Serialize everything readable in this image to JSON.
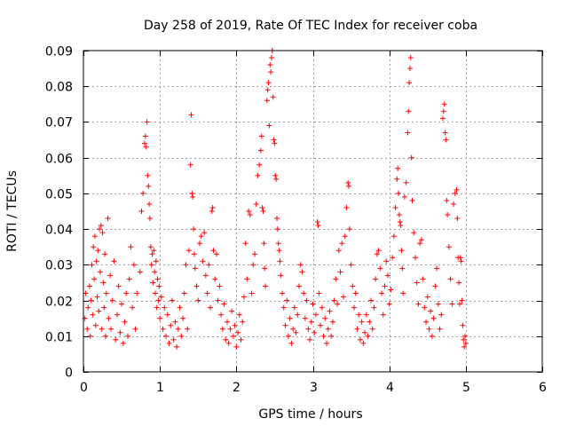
{
  "chart_data": {
    "type": "scatter",
    "title": "Day 258 of 2019, Rate Of TEC Index for receiver coba",
    "xlabel": "GPS time / hours",
    "ylabel": "ROTI / TECUs",
    "xlim": [
      0,
      6
    ],
    "ylim": [
      0,
      0.09
    ],
    "xticks": [
      0,
      1,
      2,
      3,
      4,
      5,
      6
    ],
    "xtick_labels": [
      "0",
      "1",
      "2",
      "3",
      "4",
      "5",
      "6"
    ],
    "yticks": [
      0,
      0.01,
      0.02,
      0.03,
      0.04,
      0.05,
      0.06,
      0.07,
      0.08,
      0.09
    ],
    "ytick_labels": [
      "0",
      "0.01",
      "0.02",
      "0.03",
      "0.04",
      "0.05",
      "0.06",
      "0.07",
      "0.08",
      "0.09"
    ],
    "grid": true,
    "marker": "+",
    "color": "#ff0000",
    "series": [
      {
        "name": "ROTI",
        "points": [
          [
            0.02,
            0.015
          ],
          [
            0.03,
            0.022
          ],
          [
            0.05,
            0.012
          ],
          [
            0.06,
            0.018
          ],
          [
            0.08,
            0.024
          ],
          [
            0.09,
            0.01
          ],
          [
            0.1,
            0.02
          ],
          [
            0.11,
            0.03
          ],
          [
            0.12,
            0.016
          ],
          [
            0.13,
            0.035
          ],
          [
            0.14,
            0.026
          ],
          [
            0.15,
            0.038
          ],
          [
            0.16,
            0.013
          ],
          [
            0.17,
            0.031
          ],
          [
            0.18,
            0.021
          ],
          [
            0.19,
            0.034
          ],
          [
            0.2,
            0.017
          ],
          [
            0.21,
            0.04
          ],
          [
            0.22,
            0.028
          ],
          [
            0.23,
            0.041
          ],
          [
            0.24,
            0.012
          ],
          [
            0.25,
            0.039
          ],
          [
            0.26,
            0.025
          ],
          [
            0.27,
            0.018
          ],
          [
            0.28,
            0.033
          ],
          [
            0.29,
            0.01
          ],
          [
            0.3,
            0.022
          ],
          [
            0.32,
            0.043
          ],
          [
            0.33,
            0.015
          ],
          [
            0.35,
            0.027
          ],
          [
            0.36,
            0.012
          ],
          [
            0.38,
            0.02
          ],
          [
            0.4,
            0.031
          ],
          [
            0.42,
            0.009
          ],
          [
            0.44,
            0.016
          ],
          [
            0.46,
            0.024
          ],
          [
            0.48,
            0.011
          ],
          [
            0.5,
            0.019
          ],
          [
            0.52,
            0.008
          ],
          [
            0.54,
            0.014
          ],
          [
            0.56,
            0.022
          ],
          [
            0.58,
            0.01
          ],
          [
            0.6,
            0.026
          ],
          [
            0.62,
            0.035
          ],
          [
            0.64,
            0.018
          ],
          [
            0.66,
            0.03
          ],
          [
            0.68,
            0.012
          ],
          [
            0.7,
            0.022
          ],
          [
            0.74,
            0.028
          ],
          [
            0.76,
            0.045
          ],
          [
            0.78,
            0.05
          ],
          [
            0.8,
            0.064
          ],
          [
            0.81,
            0.066
          ],
          [
            0.82,
            0.063
          ],
          [
            0.83,
            0.07
          ],
          [
            0.84,
            0.055
          ],
          [
            0.85,
            0.052
          ],
          [
            0.86,
            0.047
          ],
          [
            0.87,
            0.043
          ],
          [
            0.88,
            0.035
          ],
          [
            0.89,
            0.03
          ],
          [
            0.9,
            0.033
          ],
          [
            0.91,
            0.025
          ],
          [
            0.92,
            0.034
          ],
          [
            0.93,
            0.028
          ],
          [
            0.94,
            0.022
          ],
          [
            0.95,
            0.031
          ],
          [
            0.96,
            0.018
          ],
          [
            0.97,
            0.026
          ],
          [
            0.98,
            0.02
          ],
          [
            0.99,
            0.024
          ],
          [
            1.0,
            0.015
          ],
          [
            1.02,
            0.021
          ],
          [
            1.04,
            0.012
          ],
          [
            1.06,
            0.018
          ],
          [
            1.08,
            0.01
          ],
          [
            1.1,
            0.016
          ],
          [
            1.12,
            0.008
          ],
          [
            1.14,
            0.013
          ],
          [
            1.16,
            0.02
          ],
          [
            1.18,
            0.009
          ],
          [
            1.2,
            0.014
          ],
          [
            1.22,
            0.007
          ],
          [
            1.24,
            0.012
          ],
          [
            1.26,
            0.018
          ],
          [
            1.28,
            0.01
          ],
          [
            1.3,
            0.015
          ],
          [
            1.32,
            0.022
          ],
          [
            1.34,
            0.03
          ],
          [
            1.36,
            0.012
          ],
          [
            1.38,
            0.034
          ],
          [
            1.4,
            0.058
          ],
          [
            1.41,
            0.072
          ],
          [
            1.42,
            0.05
          ],
          [
            1.43,
            0.049
          ],
          [
            1.44,
            0.04
          ],
          [
            1.45,
            0.033
          ],
          [
            1.46,
            0.029
          ],
          [
            1.48,
            0.024
          ],
          [
            1.5,
            0.02
          ],
          [
            1.52,
            0.036
          ],
          [
            1.54,
            0.038
          ],
          [
            1.56,
            0.031
          ],
          [
            1.58,
            0.039
          ],
          [
            1.6,
            0.027
          ],
          [
            1.62,
            0.022
          ],
          [
            1.64,
            0.03
          ],
          [
            1.66,
            0.018
          ],
          [
            1.68,
            0.045
          ],
          [
            1.69,
            0.046
          ],
          [
            1.7,
            0.034
          ],
          [
            1.72,
            0.026
          ],
          [
            1.74,
            0.033
          ],
          [
            1.76,
            0.02
          ],
          [
            1.78,
            0.024
          ],
          [
            1.8,
            0.016
          ],
          [
            1.82,
            0.012
          ],
          [
            1.84,
            0.019
          ],
          [
            1.86,
            0.009
          ],
          [
            1.88,
            0.014
          ],
          [
            1.9,
            0.008
          ],
          [
            1.92,
            0.012
          ],
          [
            1.94,
            0.017
          ],
          [
            1.96,
            0.01
          ],
          [
            1.98,
            0.013
          ],
          [
            2.0,
            0.007
          ],
          [
            2.02,
            0.011
          ],
          [
            2.04,
            0.016
          ],
          [
            2.06,
            0.009
          ],
          [
            2.08,
            0.014
          ],
          [
            2.1,
            0.021
          ],
          [
            2.12,
            0.036
          ],
          [
            2.14,
            0.026
          ],
          [
            2.16,
            0.045
          ],
          [
            2.18,
            0.044
          ],
          [
            2.2,
            0.022
          ],
          [
            2.22,
            0.03
          ],
          [
            2.24,
            0.033
          ],
          [
            2.26,
            0.047
          ],
          [
            2.28,
            0.055
          ],
          [
            2.3,
            0.058
          ],
          [
            2.32,
            0.062
          ],
          [
            2.33,
            0.066
          ],
          [
            2.34,
            0.046
          ],
          [
            2.35,
            0.045
          ],
          [
            2.36,
            0.036
          ],
          [
            2.37,
            0.029
          ],
          [
            2.38,
            0.024
          ],
          [
            2.4,
            0.076
          ],
          [
            2.41,
            0.079
          ],
          [
            2.42,
            0.081
          ],
          [
            2.43,
            0.069
          ],
          [
            2.44,
            0.086
          ],
          [
            2.45,
            0.084
          ],
          [
            2.46,
            0.088
          ],
          [
            2.47,
            0.09
          ],
          [
            2.48,
            0.077
          ],
          [
            2.49,
            0.065
          ],
          [
            2.5,
            0.064
          ],
          [
            2.51,
            0.055
          ],
          [
            2.52,
            0.054
          ],
          [
            2.53,
            0.043
          ],
          [
            2.54,
            0.04
          ],
          [
            2.55,
            0.036
          ],
          [
            2.56,
            0.034
          ],
          [
            2.57,
            0.031
          ],
          [
            2.58,
            0.027
          ],
          [
            2.6,
            0.022
          ],
          [
            2.62,
            0.018
          ],
          [
            2.64,
            0.013
          ],
          [
            2.66,
            0.02
          ],
          [
            2.68,
            0.01
          ],
          [
            2.7,
            0.015
          ],
          [
            2.72,
            0.008
          ],
          [
            2.74,
            0.012
          ],
          [
            2.76,
            0.018
          ],
          [
            2.78,
            0.011
          ],
          [
            2.8,
            0.016
          ],
          [
            2.82,
            0.024
          ],
          [
            2.84,
            0.03
          ],
          [
            2.86,
            0.028
          ],
          [
            2.88,
            0.022
          ],
          [
            2.9,
            0.015
          ],
          [
            2.92,
            0.02
          ],
          [
            2.94,
            0.012
          ],
          [
            2.96,
            0.009
          ],
          [
            2.98,
            0.014
          ],
          [
            3.0,
            0.019
          ],
          [
            3.02,
            0.011
          ],
          [
            3.04,
            0.016
          ],
          [
            3.06,
            0.042
          ],
          [
            3.07,
            0.041
          ],
          [
            3.08,
            0.022
          ],
          [
            3.1,
            0.013
          ],
          [
            3.12,
            0.018
          ],
          [
            3.14,
            0.01
          ],
          [
            3.16,
            0.015
          ],
          [
            3.18,
            0.008
          ],
          [
            3.2,
            0.012
          ],
          [
            3.22,
            0.017
          ],
          [
            3.24,
            0.01
          ],
          [
            3.26,
            0.014
          ],
          [
            3.28,
            0.02
          ],
          [
            3.3,
            0.026
          ],
          [
            3.32,
            0.019
          ],
          [
            3.34,
            0.034
          ],
          [
            3.36,
            0.028
          ],
          [
            3.38,
            0.036
          ],
          [
            3.4,
            0.021
          ],
          [
            3.42,
            0.038
          ],
          [
            3.44,
            0.046
          ],
          [
            3.46,
            0.053
          ],
          [
            3.47,
            0.052
          ],
          [
            3.48,
            0.04
          ],
          [
            3.5,
            0.03
          ],
          [
            3.52,
            0.024
          ],
          [
            3.54,
            0.018
          ],
          [
            3.56,
            0.022
          ],
          [
            3.58,
            0.012
          ],
          [
            3.6,
            0.016
          ],
          [
            3.62,
            0.009
          ],
          [
            3.64,
            0.014
          ],
          [
            3.66,
            0.008
          ],
          [
            3.68,
            0.011
          ],
          [
            3.7,
            0.016
          ],
          [
            3.72,
            0.01
          ],
          [
            3.74,
            0.014
          ],
          [
            3.76,
            0.02
          ],
          [
            3.78,
            0.012
          ],
          [
            3.8,
            0.018
          ],
          [
            3.82,
            0.026
          ],
          [
            3.84,
            0.033
          ],
          [
            3.86,
            0.034
          ],
          [
            3.88,
            0.029
          ],
          [
            3.9,
            0.022
          ],
          [
            3.92,
            0.016
          ],
          [
            3.94,
            0.024
          ],
          [
            3.96,
            0.031
          ],
          [
            3.98,
            0.027
          ],
          [
            4.0,
            0.019
          ],
          [
            4.02,
            0.023
          ],
          [
            4.04,
            0.032
          ],
          [
            4.06,
            0.038
          ],
          [
            4.08,
            0.046
          ],
          [
            4.1,
            0.054
          ],
          [
            4.11,
            0.057
          ],
          [
            4.12,
            0.05
          ],
          [
            4.13,
            0.044
          ],
          [
            4.14,
            0.042
          ],
          [
            4.15,
            0.041
          ],
          [
            4.16,
            0.034
          ],
          [
            4.17,
            0.029
          ],
          [
            4.18,
            0.022
          ],
          [
            4.2,
            0.049
          ],
          [
            4.22,
            0.053
          ],
          [
            4.24,
            0.067
          ],
          [
            4.25,
            0.073
          ],
          [
            4.26,
            0.081
          ],
          [
            4.27,
            0.085
          ],
          [
            4.28,
            0.088
          ],
          [
            4.29,
            0.06
          ],
          [
            4.3,
            0.048
          ],
          [
            4.32,
            0.039
          ],
          [
            4.34,
            0.032
          ],
          [
            4.36,
            0.025
          ],
          [
            4.38,
            0.019
          ],
          [
            4.4,
            0.036
          ],
          [
            4.42,
            0.037
          ],
          [
            4.44,
            0.026
          ],
          [
            4.46,
            0.018
          ],
          [
            4.48,
            0.014
          ],
          [
            4.5,
            0.021
          ],
          [
            4.52,
            0.012
          ],
          [
            4.54,
            0.017
          ],
          [
            4.56,
            0.01
          ],
          [
            4.58,
            0.015
          ],
          [
            4.6,
            0.024
          ],
          [
            4.62,
            0.029
          ],
          [
            4.64,
            0.019
          ],
          [
            4.66,
            0.012
          ],
          [
            4.68,
            0.016
          ],
          [
            4.7,
            0.071
          ],
          [
            4.71,
            0.073
          ],
          [
            4.72,
            0.075
          ],
          [
            4.73,
            0.067
          ],
          [
            4.74,
            0.065
          ],
          [
            4.75,
            0.048
          ],
          [
            4.76,
            0.044
          ],
          [
            4.78,
            0.035
          ],
          [
            4.8,
            0.026
          ],
          [
            4.82,
            0.019
          ],
          [
            4.84,
            0.047
          ],
          [
            4.86,
            0.05
          ],
          [
            4.88,
            0.051
          ],
          [
            4.89,
            0.043
          ],
          [
            4.9,
            0.032
          ],
          [
            4.91,
            0.025
          ],
          [
            4.92,
            0.019
          ],
          [
            4.93,
            0.032
          ],
          [
            4.94,
            0.031
          ],
          [
            4.95,
            0.02
          ],
          [
            4.96,
            0.013
          ],
          [
            4.97,
            0.009
          ],
          [
            4.98,
            0.007
          ],
          [
            4.99,
            0.01
          ],
          [
            5.0,
            0.008
          ]
        ]
      }
    ]
  }
}
